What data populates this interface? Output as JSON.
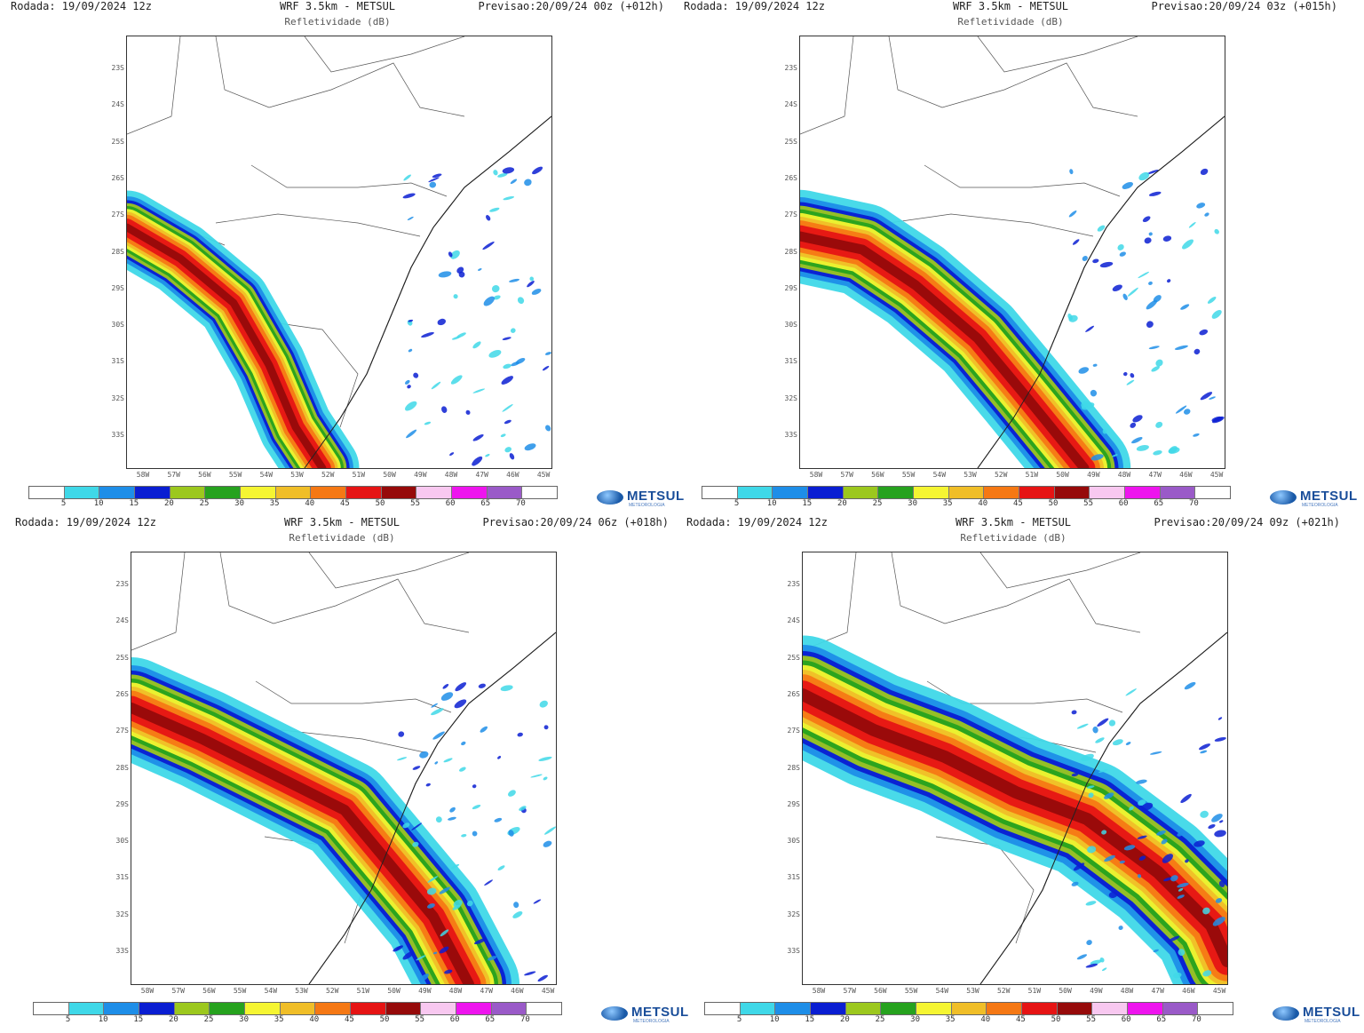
{
  "panels": [
    {
      "run": "Rodada: 19/09/2024 12z",
      "model": "WRF 3.5km - METSUL",
      "variable": "Refletividade (dB)",
      "forecast": "Previsao:20/09/24 00z (+012h)"
    },
    {
      "run": "Rodada: 19/09/2024 12z",
      "model": "WRF 3.5km - METSUL",
      "variable": "Refletividade (dB)",
      "forecast": "Previsao:20/09/24 03z (+015h)"
    },
    {
      "run": "Rodada: 19/09/2024 12z",
      "model": "WRF 3.5km - METSUL",
      "variable": "Refletividade (dB)",
      "forecast": "Previsao:20/09/24 06z (+018h)"
    },
    {
      "run": "Rodada: 19/09/2024 12z",
      "model": "WRF 3.5km - METSUL",
      "variable": "Refletividade (dB)",
      "forecast": "Previsao:20/09/24 09z (+021h)"
    }
  ],
  "lat_labels": [
    "23S",
    "24S",
    "25S",
    "26S",
    "27S",
    "28S",
    "29S",
    "30S",
    "31S",
    "32S",
    "33S"
  ],
  "lon_labels": [
    "58W",
    "57W",
    "56W",
    "55W",
    "54W",
    "53W",
    "52W",
    "51W",
    "50W",
    "49W",
    "48W",
    "47W",
    "46W",
    "45W"
  ],
  "colorbar": {
    "labels": [
      "5",
      "10",
      "15",
      "20",
      "25",
      "30",
      "35",
      "40",
      "45",
      "50",
      "55",
      "60",
      "65",
      "70"
    ],
    "colors": [
      "#ffffff",
      "#3fd8e8",
      "#1e8ee8",
      "#0a1ed2",
      "#9cc81e",
      "#26a21e",
      "#f5f532",
      "#f0be28",
      "#f57814",
      "#e61414",
      "#960a0a",
      "#f8c8f0",
      "#ee14ee",
      "#9a5ac8",
      "#ffffff"
    ]
  },
  "logo": {
    "name": "METSUL",
    "tagline": "METEOROLOGIA"
  }
}
